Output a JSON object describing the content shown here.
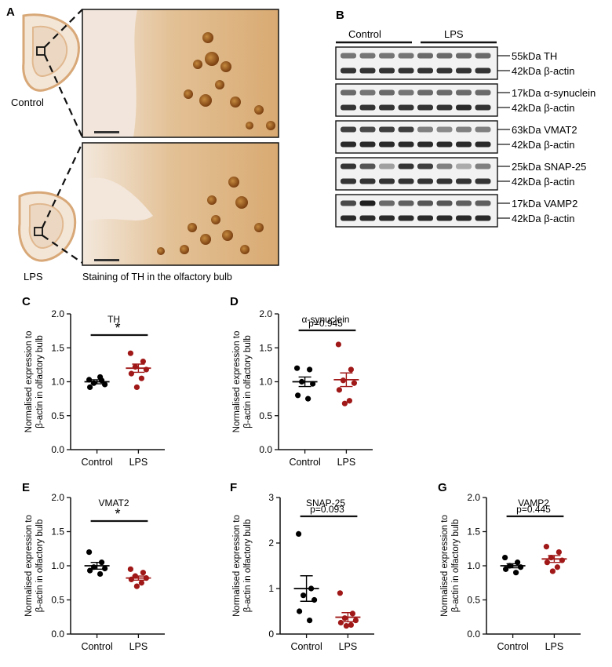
{
  "panel_a": {
    "letter": "A",
    "control_label": "Control",
    "lps_label": "LPS",
    "caption": "Staining of TH in the olfactory bulb"
  },
  "panel_b": {
    "letter": "B",
    "group_control": "Control",
    "group_lps": "LPS",
    "blots": [
      {
        "bands": [
          {
            "label": "55kDa TH",
            "dark": [
              0.55,
              0.55,
              0.55,
              0.55,
              0.6,
              0.6,
              0.6,
              0.6
            ]
          },
          {
            "label": "42kDa β-actin",
            "dark": [
              0.85,
              0.85,
              0.85,
              0.85,
              0.85,
              0.85,
              0.85,
              0.85
            ]
          }
        ]
      },
      {
        "bands": [
          {
            "label": "17kDa α-synuclein",
            "dark": [
              0.6,
              0.55,
              0.6,
              0.55,
              0.6,
              0.6,
              0.6,
              0.6
            ]
          },
          {
            "label": "42kDa β-actin",
            "dark": [
              0.85,
              0.85,
              0.85,
              0.85,
              0.85,
              0.85,
              0.9,
              0.85
            ]
          }
        ]
      },
      {
        "bands": [
          {
            "label": "63kDa VMAT2",
            "dark": [
              0.8,
              0.75,
              0.8,
              0.8,
              0.5,
              0.45,
              0.5,
              0.5
            ]
          },
          {
            "label": "42kDa β-actin",
            "dark": [
              0.9,
              0.9,
              0.9,
              0.9,
              0.9,
              0.9,
              0.9,
              0.9
            ]
          }
        ]
      },
      {
        "bands": [
          {
            "label": "25kDa SNAP-25",
            "dark": [
              0.85,
              0.7,
              0.35,
              0.85,
              0.8,
              0.5,
              0.3,
              0.5
            ]
          },
          {
            "label": "42kDa β-actin",
            "dark": [
              0.85,
              0.85,
              0.85,
              0.85,
              0.85,
              0.85,
              0.85,
              0.85
            ]
          }
        ]
      },
      {
        "bands": [
          {
            "label": "17kDa VAMP2",
            "dark": [
              0.75,
              0.95,
              0.6,
              0.65,
              0.7,
              0.7,
              0.65,
              0.65
            ]
          },
          {
            "label": "42kDa β-actin",
            "dark": [
              0.9,
              0.9,
              0.9,
              0.9,
              0.9,
              0.9,
              0.9,
              0.9
            ]
          }
        ]
      }
    ]
  },
  "ylabel_line1": "Normalised expression to",
  "ylabel_line2": "β-actin in olfactory bulb",
  "chart_data": [
    {
      "type": "scatter",
      "letter": "C",
      "title": "TH",
      "categories": [
        "Control",
        "LPS"
      ],
      "ylim": [
        0,
        2
      ],
      "yticks": [
        "0.0",
        "0.5",
        "1.0",
        "1.5",
        "2.0"
      ],
      "stat": "*",
      "series": [
        {
          "color": "#000000",
          "points": [
            1.03,
            1.02,
            0.98,
            0.96,
            0.92,
            1.07
          ],
          "mean": 1.0,
          "sem": 0.03
        },
        {
          "color": "#a01818",
          "points": [
            1.42,
            1.3,
            1.22,
            1.18,
            1.12,
            1.05,
            0.92
          ],
          "mean": 1.2,
          "sem": 0.06
        }
      ]
    },
    {
      "type": "scatter",
      "letter": "D",
      "title": "α-synuclein",
      "categories": [
        "Control",
        "LPS"
      ],
      "ylim": [
        0,
        2
      ],
      "yticks": [
        "0.0",
        "0.5",
        "1.0",
        "1.5",
        "2.0"
      ],
      "stat": "p=0.945",
      "series": [
        {
          "color": "#000000",
          "points": [
            1.2,
            1.18,
            1.0,
            0.97,
            0.8,
            0.75
          ],
          "mean": 1.0,
          "sem": 0.07
        },
        {
          "color": "#a01818",
          "points": [
            1.55,
            1.18,
            1.02,
            0.98,
            0.88,
            0.72,
            0.68
          ],
          "mean": 1.03,
          "sem": 0.1
        }
      ]
    },
    {
      "type": "scatter",
      "letter": "E",
      "title": "VMAT2",
      "categories": [
        "Control",
        "LPS"
      ],
      "ylim": [
        0,
        2
      ],
      "yticks": [
        "0.0",
        "0.5",
        "1.0",
        "1.5",
        "2.0"
      ],
      "stat": "*",
      "series": [
        {
          "color": "#000000",
          "points": [
            1.2,
            1.05,
            0.98,
            0.96,
            0.93,
            0.88
          ],
          "mean": 1.0,
          "sem": 0.05
        },
        {
          "color": "#a01818",
          "points": [
            0.95,
            0.9,
            0.85,
            0.82,
            0.8,
            0.75,
            0.7
          ],
          "mean": 0.82,
          "sem": 0.03
        }
      ]
    },
    {
      "type": "scatter",
      "letter": "F",
      "title": "SNAP-25",
      "categories": [
        "Control",
        "LPS"
      ],
      "ylim": [
        0,
        3
      ],
      "yticks": [
        "0",
        "1",
        "2",
        "3"
      ],
      "stat": "p=0.093",
      "series": [
        {
          "color": "#000000",
          "points": [
            2.2,
            1.0,
            0.85,
            0.75,
            0.5,
            0.3
          ],
          "mean": 1.0,
          "sem": 0.28
        },
        {
          "color": "#a01818",
          "points": [
            0.9,
            0.45,
            0.35,
            0.3,
            0.25,
            0.2,
            0.18
          ],
          "mean": 0.37,
          "sem": 0.1
        }
      ]
    },
    {
      "type": "scatter",
      "letter": "G",
      "title": "VAMP2",
      "categories": [
        "Control",
        "LPS"
      ],
      "ylim": [
        0,
        2
      ],
      "yticks": [
        "0.0",
        "0.5",
        "1.0",
        "1.5",
        "2.0"
      ],
      "stat": "p=0.445",
      "series": [
        {
          "color": "#000000",
          "points": [
            1.12,
            1.05,
            1.0,
            0.98,
            0.95,
            0.9
          ],
          "mean": 1.0,
          "sem": 0.03
        },
        {
          "color": "#a01818",
          "points": [
            1.28,
            1.2,
            1.12,
            1.08,
            1.05,
            0.98,
            0.92
          ],
          "mean": 1.1,
          "sem": 0.05
        }
      ]
    }
  ]
}
